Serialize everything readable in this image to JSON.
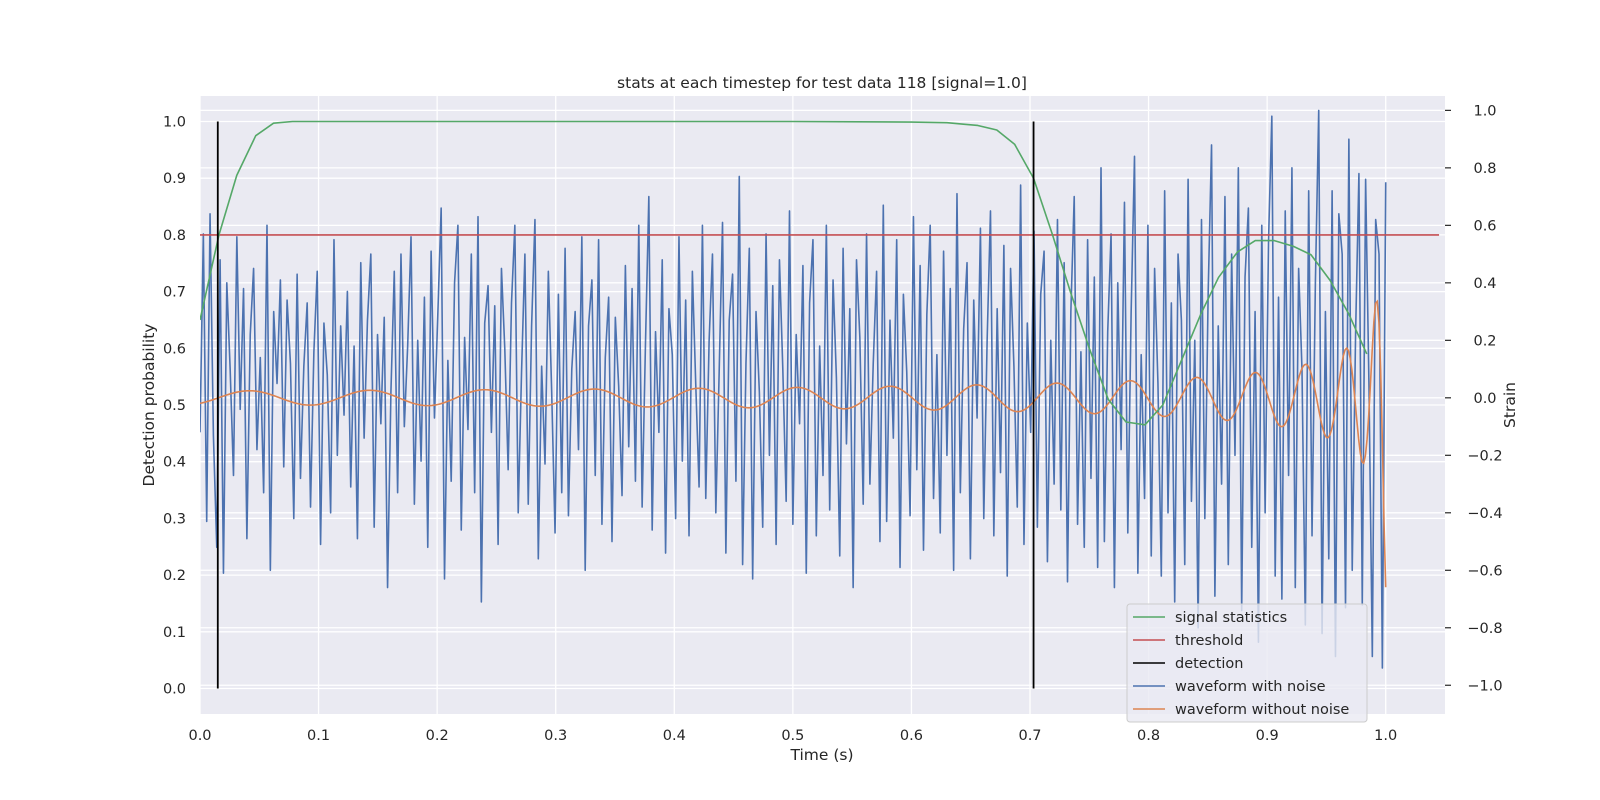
{
  "chart_data": {
    "type": "line",
    "title": "stats at each timestep for test data 118 [signal=1.0]",
    "xlabel": "Time (s)",
    "ylabel": "Detection probability",
    "y2label": "Strain",
    "xlim": [
      0.0,
      1.05
    ],
    "ylim": [
      -0.045,
      1.045
    ],
    "y2lim": [
      -1.1,
      1.05
    ],
    "xticks": [
      "0.0",
      "0.1",
      "0.2",
      "0.3",
      "0.4",
      "0.5",
      "0.6",
      "0.7",
      "0.8",
      "0.9",
      "1.0"
    ],
    "yticks": [
      "0.0",
      "0.1",
      "0.2",
      "0.3",
      "0.4",
      "0.5",
      "0.6",
      "0.7",
      "0.8",
      "0.9",
      "1.0"
    ],
    "y2ticks": [
      "−1.0",
      "−0.8",
      "−0.6",
      "−0.4",
      "−0.2",
      "0.0",
      "0.2",
      "0.4",
      "0.6",
      "0.8",
      "1.0"
    ],
    "grid": true,
    "legend_position": "lower-right",
    "colors": {
      "signal_statistics": "#55a868",
      "threshold": "#c44e52",
      "detection": "#000000",
      "waveform_with_noise": "#4c72b0",
      "waveform_without_noise": "#dd8452",
      "plot_background": "#eaeaf2",
      "grid": "#ffffff"
    },
    "series": [
      {
        "name": "signal statistics",
        "axis": "left",
        "x": [
          0.0,
          0.016,
          0.031,
          0.047,
          0.062,
          0.078,
          0.1,
          0.2,
          0.3,
          0.4,
          0.5,
          0.6,
          0.63,
          0.645,
          0.656,
          0.672,
          0.687,
          0.703,
          0.719,
          0.734,
          0.75,
          0.766,
          0.781,
          0.797,
          0.812,
          0.828,
          0.844,
          0.859,
          0.875,
          0.89,
          0.906,
          0.922,
          0.937,
          0.953,
          0.969,
          0.984
        ],
        "y": [
          0.65,
          0.8,
          0.905,
          0.975,
          0.997,
          1.0,
          1.0,
          1.0,
          1.0,
          1.0,
          1.0,
          0.999,
          0.998,
          0.995,
          0.993,
          0.985,
          0.96,
          0.9,
          0.8,
          0.7,
          0.6,
          0.51,
          0.47,
          0.465,
          0.5,
          0.58,
          0.66,
          0.725,
          0.77,
          0.79,
          0.79,
          0.78,
          0.765,
          0.72,
          0.66,
          0.59
        ]
      },
      {
        "name": "threshold",
        "axis": "left",
        "x": [
          0.0,
          1.045
        ],
        "y": [
          0.8,
          0.8
        ]
      },
      {
        "name": "detection",
        "axis": "left",
        "x": [
          0.015,
          0.703
        ],
        "y": [
          1.0,
          1.0
        ]
      },
      {
        "name": "waveform with noise",
        "axis": "right",
        "x_range": [
          0.0,
          1.0
        ],
        "y": [
          -0.12,
          0.57,
          -0.43,
          0.64,
          -0.13,
          -0.52,
          0.48,
          -0.61,
          0.4,
          0.1,
          -0.27,
          0.56,
          -0.04,
          0.38,
          -0.49,
          0.22,
          0.45,
          -0.18,
          0.14,
          -0.33,
          0.6,
          -0.6,
          0.3,
          0.05,
          0.41,
          -0.24,
          0.34,
          0.12,
          -0.42,
          0.43,
          -0.28,
          0.11,
          0.33,
          -0.38,
          0.16,
          0.44,
          -0.51,
          0.26,
          0.08,
          -0.4,
          0.55,
          -0.2,
          0.25,
          -0.06,
          0.37,
          -0.31,
          0.18,
          -0.49,
          0.47,
          -0.14,
          0.27,
          0.5,
          -0.45,
          0.22,
          -0.09,
          0.28,
          -0.66,
          0.02,
          0.44,
          -0.33,
          0.5,
          -0.1,
          0.18,
          0.56,
          -0.37,
          0.2,
          -0.22,
          0.35,
          -0.52,
          0.51,
          -0.07,
          0.29,
          0.66,
          -0.63,
          0.13,
          -0.29,
          0.4,
          0.6,
          -0.46,
          0.21,
          -0.11,
          0.5,
          -0.33,
          0.63,
          -0.71,
          0.26,
          0.39,
          -0.12,
          0.32,
          -0.51,
          0.45,
          0.17,
          -0.25,
          0.33,
          0.6,
          -0.4,
          0.09,
          0.5,
          -0.37,
          0.25,
          0.62,
          -0.56,
          0.11,
          -0.23,
          0.44,
          0.02,
          -0.47,
          0.36,
          -0.33,
          0.52,
          -0.41,
          0.1,
          0.3,
          -0.18,
          0.56,
          -0.6,
          0.25,
          0.41,
          -0.27,
          0.55,
          -0.44,
          0.14,
          0.35,
          -0.5,
          0.28,
          0.04,
          -0.34,
          0.46,
          -0.17,
          0.38,
          -0.29,
          0.6,
          -0.38,
          0.19,
          0.7,
          -0.46,
          0.23,
          -0.12,
          0.48,
          -0.54,
          0.31,
          0.15,
          -0.42,
          0.56,
          -0.22,
          0.34,
          -0.48,
          0.44,
          0.05,
          -0.31,
          0.6,
          -0.35,
          0.2,
          0.5,
          -0.4,
          0.09,
          0.61,
          -0.54,
          0.27,
          0.43,
          -0.29,
          0.77,
          -0.58,
          0.12,
          0.52,
          -0.63,
          0.3,
          0.02,
          -0.45,
          0.57,
          -0.2,
          0.39,
          -0.51,
          0.48,
          0.1,
          -0.36,
          0.65,
          -0.44,
          0.22,
          -0.09,
          0.46,
          -0.61,
          0.33,
          0.55,
          -0.48,
          0.18,
          -0.27,
          0.6,
          -0.39,
          0.41,
          0.07,
          -0.55,
          0.52,
          -0.16,
          0.31,
          -0.66,
          0.48,
          0.21,
          -0.37,
          0.57,
          -0.3,
          0.12,
          0.44,
          -0.5,
          0.67,
          -0.43,
          0.27,
          -0.14,
          0.55,
          -0.59,
          0.36,
          0.09,
          -0.41,
          0.63,
          -0.25,
          0.46,
          -0.53,
          0.29,
          0.6,
          -0.35,
          0.15,
          -0.47,
          0.51,
          -0.2,
          0.38,
          -0.6,
          0.71,
          -0.33,
          0.24,
          0.47,
          -0.56,
          0.34,
          -0.07,
          0.59,
          -0.42,
          0.2,
          0.65,
          -0.48,
          0.31,
          -0.26,
          0.53,
          -0.62,
          0.45,
          0.11,
          -0.38,
          0.74,
          -0.51,
          0.26,
          -0.12,
          0.58,
          -0.45,
          0.36,
          0.51,
          -0.57,
          0.2,
          -0.3,
          0.62,
          -0.39,
          0.47,
          -0.64,
          0.3,
          0.7,
          -0.44,
          0.16,
          -0.52,
          0.55,
          -0.28,
          0.42,
          -0.59,
          0.8,
          -0.5,
          0.23,
          0.57,
          -0.66,
          0.4,
          -0.18,
          0.68,
          -0.47,
          0.3,
          0.84,
          -0.61,
          0.15,
          -0.35,
          0.6,
          -0.55,
          0.45,
          0.05,
          -0.62,
          0.72,
          -0.4,
          0.33,
          -0.71,
          0.5,
          0.27,
          -0.58,
          0.76,
          -0.36,
          0.2,
          -0.8,
          0.62,
          -0.42,
          0.37,
          0.88,
          -0.69,
          0.25,
          -0.3,
          0.7,
          -0.58,
          0.5,
          -0.2,
          0.8,
          -0.74,
          0.42,
          0.66,
          -0.52,
          0.3,
          -0.85,
          0.6,
          -0.4,
          0.54,
          0.98,
          -0.62,
          0.35,
          -0.7,
          0.65,
          -0.27,
          0.8,
          -0.66,
          0.45,
          0.1,
          -0.79,
          0.72,
          -0.48,
          0.4,
          1.0,
          -0.82,
          0.3,
          -0.56,
          0.72,
          -0.9,
          0.64,
          0.5,
          -0.73,
          0.9,
          -0.6,
          0.22,
          0.78,
          -0.72,
          0.76,
          0.04,
          -0.9,
          0.62,
          0.5,
          -0.94,
          0.75
        ],
        "x_note_visible": false
      },
      {
        "name": "waveform without noise",
        "axis": "right",
        "x_range": [
          0.0,
          1.0
        ],
        "y_note_visible": false
      }
    ]
  }
}
